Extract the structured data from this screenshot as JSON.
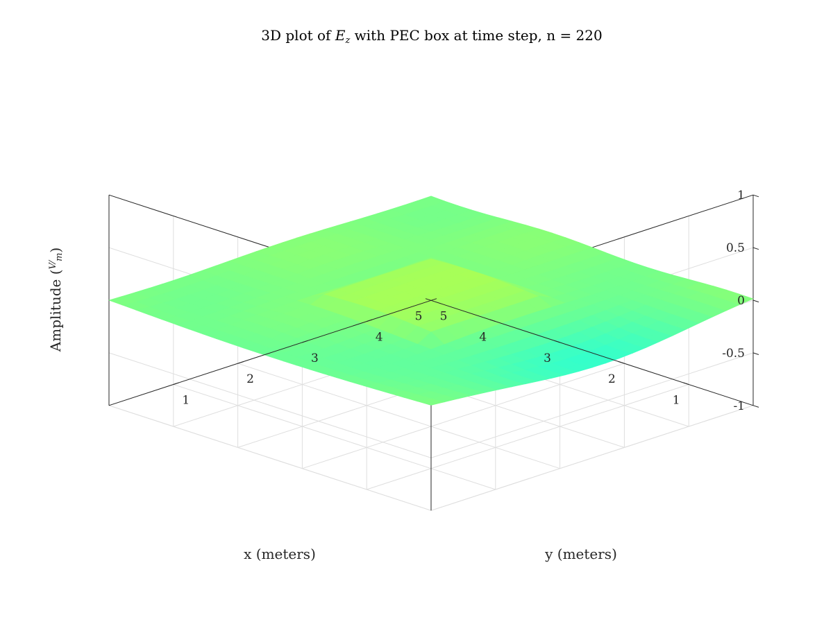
{
  "chart_data": {
    "type": "surface",
    "title": {
      "prefix": "3D plot of ",
      "var_main": "E",
      "var_sub": "z",
      "suffix": " with PEC box at time step, n = 220"
    },
    "xlabel": "x (meters)",
    "ylabel": "y (meters)",
    "zlabel": {
      "prefix": "Amplitude (",
      "num": "V",
      "den": "m",
      "suffix": ")"
    },
    "xlim": [
      0,
      5
    ],
    "ylim": [
      0,
      5
    ],
    "zlim": [
      -1,
      1
    ],
    "x_ticks": [
      "1",
      "2",
      "3",
      "4",
      "5"
    ],
    "y_ticks": [
      "1",
      "2",
      "3",
      "4",
      "5"
    ],
    "z_ticks": [
      "1",
      "0.5",
      "0",
      "-0.5",
      "-1"
    ],
    "x_tick_values": [
      1,
      2,
      3,
      4,
      5
    ],
    "y_tick_values": [
      1,
      2,
      3,
      4,
      5
    ],
    "z_tick_values": [
      1,
      0.5,
      0,
      -0.5,
      -1
    ],
    "pec_box": {
      "x": [
        1.5,
        3.5
      ],
      "y": [
        1.5,
        3.5
      ]
    },
    "grid": true,
    "colormap": "jet"
  }
}
